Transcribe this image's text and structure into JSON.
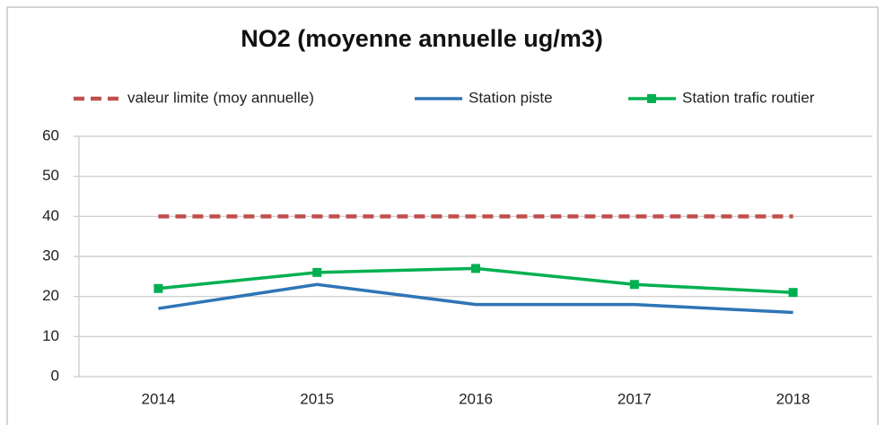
{
  "chart_data": {
    "type": "line",
    "title": "NO2 (moyenne annuelle ug/m3)",
    "categories": [
      "2014",
      "2015",
      "2016",
      "2017",
      "2018"
    ],
    "series": [
      {
        "name": "valeur limite (moy annuelle)",
        "color": "#c0504d",
        "line_style": "dashed",
        "values": [
          40,
          40,
          40,
          40,
          40
        ]
      },
      {
        "name": "Station piste",
        "color": "#2e75b6",
        "line_style": "solid",
        "values": [
          17,
          23,
          18,
          18,
          16
        ]
      },
      {
        "name": "Station trafic routier",
        "color": "#00b050",
        "line_style": "solid",
        "marker": "square",
        "values": [
          22,
          26,
          27,
          23,
          21
        ]
      }
    ],
    "ylim": [
      0,
      60
    ],
    "yticks": [
      0,
      10,
      20,
      30,
      40,
      50,
      60
    ],
    "grid": true,
    "legend": "top"
  }
}
